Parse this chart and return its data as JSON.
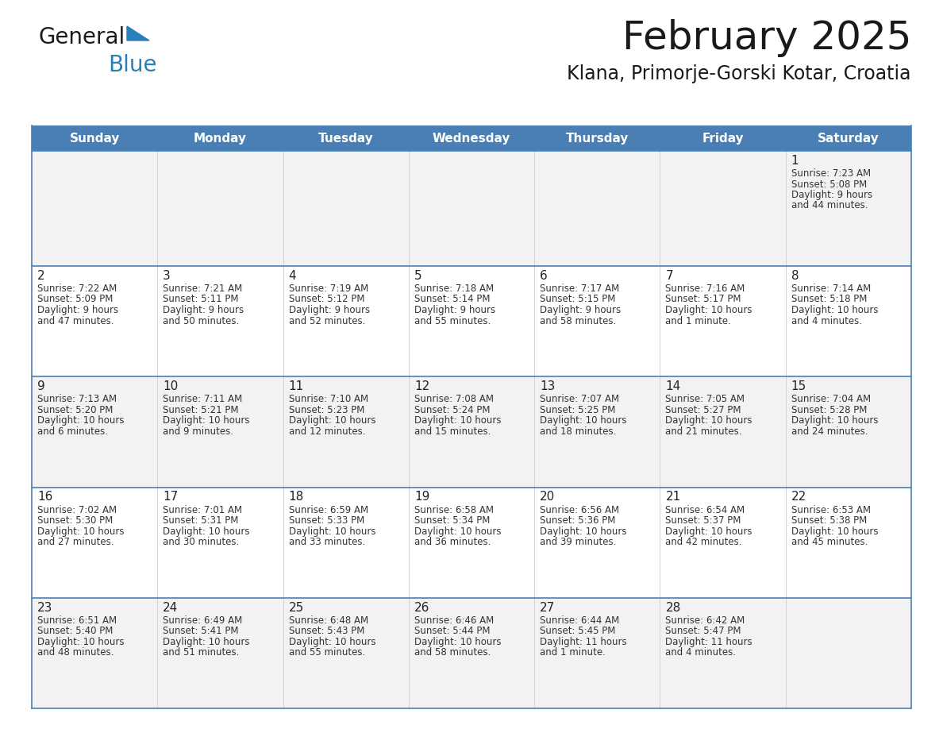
{
  "title": "February 2025",
  "subtitle": "Klana, Primorje-Gorski Kotar, Croatia",
  "days_of_week": [
    "Sunday",
    "Monday",
    "Tuesday",
    "Wednesday",
    "Thursday",
    "Friday",
    "Saturday"
  ],
  "header_bg": "#4a7fb5",
  "header_text": "#ffffff",
  "row_bg_even": "#f2f2f2",
  "row_bg_odd": "#ffffff",
  "border_color": "#4a7fb5",
  "cell_border_color": "#4a7fb5",
  "text_color": "#333333",
  "day_num_color": "#222222",
  "logo_general_color": "#1a1a1a",
  "logo_blue_color": "#2980b9",
  "logo_triangle_color": "#2980b9",
  "title_color": "#1a1a1a",
  "subtitle_color": "#1a1a1a",
  "calendar_data": [
    [
      null,
      null,
      null,
      null,
      null,
      null,
      {
        "day": 1,
        "sunrise": "7:23 AM",
        "sunset": "5:08 PM",
        "daylight": "9 hours and 44 minutes."
      }
    ],
    [
      {
        "day": 2,
        "sunrise": "7:22 AM",
        "sunset": "5:09 PM",
        "daylight": "9 hours and 47 minutes."
      },
      {
        "day": 3,
        "sunrise": "7:21 AM",
        "sunset": "5:11 PM",
        "daylight": "9 hours and 50 minutes."
      },
      {
        "day": 4,
        "sunrise": "7:19 AM",
        "sunset": "5:12 PM",
        "daylight": "9 hours and 52 minutes."
      },
      {
        "day": 5,
        "sunrise": "7:18 AM",
        "sunset": "5:14 PM",
        "daylight": "9 hours and 55 minutes."
      },
      {
        "day": 6,
        "sunrise": "7:17 AM",
        "sunset": "5:15 PM",
        "daylight": "9 hours and 58 minutes."
      },
      {
        "day": 7,
        "sunrise": "7:16 AM",
        "sunset": "5:17 PM",
        "daylight": "10 hours and 1 minute."
      },
      {
        "day": 8,
        "sunrise": "7:14 AM",
        "sunset": "5:18 PM",
        "daylight": "10 hours and 4 minutes."
      }
    ],
    [
      {
        "day": 9,
        "sunrise": "7:13 AM",
        "sunset": "5:20 PM",
        "daylight": "10 hours and 6 minutes."
      },
      {
        "day": 10,
        "sunrise": "7:11 AM",
        "sunset": "5:21 PM",
        "daylight": "10 hours and 9 minutes."
      },
      {
        "day": 11,
        "sunrise": "7:10 AM",
        "sunset": "5:23 PM",
        "daylight": "10 hours and 12 minutes."
      },
      {
        "day": 12,
        "sunrise": "7:08 AM",
        "sunset": "5:24 PM",
        "daylight": "10 hours and 15 minutes."
      },
      {
        "day": 13,
        "sunrise": "7:07 AM",
        "sunset": "5:25 PM",
        "daylight": "10 hours and 18 minutes."
      },
      {
        "day": 14,
        "sunrise": "7:05 AM",
        "sunset": "5:27 PM",
        "daylight": "10 hours and 21 minutes."
      },
      {
        "day": 15,
        "sunrise": "7:04 AM",
        "sunset": "5:28 PM",
        "daylight": "10 hours and 24 minutes."
      }
    ],
    [
      {
        "day": 16,
        "sunrise": "7:02 AM",
        "sunset": "5:30 PM",
        "daylight": "10 hours and 27 minutes."
      },
      {
        "day": 17,
        "sunrise": "7:01 AM",
        "sunset": "5:31 PM",
        "daylight": "10 hours and 30 minutes."
      },
      {
        "day": 18,
        "sunrise": "6:59 AM",
        "sunset": "5:33 PM",
        "daylight": "10 hours and 33 minutes."
      },
      {
        "day": 19,
        "sunrise": "6:58 AM",
        "sunset": "5:34 PM",
        "daylight": "10 hours and 36 minutes."
      },
      {
        "day": 20,
        "sunrise": "6:56 AM",
        "sunset": "5:36 PM",
        "daylight": "10 hours and 39 minutes."
      },
      {
        "day": 21,
        "sunrise": "6:54 AM",
        "sunset": "5:37 PM",
        "daylight": "10 hours and 42 minutes."
      },
      {
        "day": 22,
        "sunrise": "6:53 AM",
        "sunset": "5:38 PM",
        "daylight": "10 hours and 45 minutes."
      }
    ],
    [
      {
        "day": 23,
        "sunrise": "6:51 AM",
        "sunset": "5:40 PM",
        "daylight": "10 hours and 48 minutes."
      },
      {
        "day": 24,
        "sunrise": "6:49 AM",
        "sunset": "5:41 PM",
        "daylight": "10 hours and 51 minutes."
      },
      {
        "day": 25,
        "sunrise": "6:48 AM",
        "sunset": "5:43 PM",
        "daylight": "10 hours and 55 minutes."
      },
      {
        "day": 26,
        "sunrise": "6:46 AM",
        "sunset": "5:44 PM",
        "daylight": "10 hours and 58 minutes."
      },
      {
        "day": 27,
        "sunrise": "6:44 AM",
        "sunset": "5:45 PM",
        "daylight": "11 hours and 1 minute."
      },
      {
        "day": 28,
        "sunrise": "6:42 AM",
        "sunset": "5:47 PM",
        "daylight": "11 hours and 4 minutes."
      },
      null
    ]
  ]
}
